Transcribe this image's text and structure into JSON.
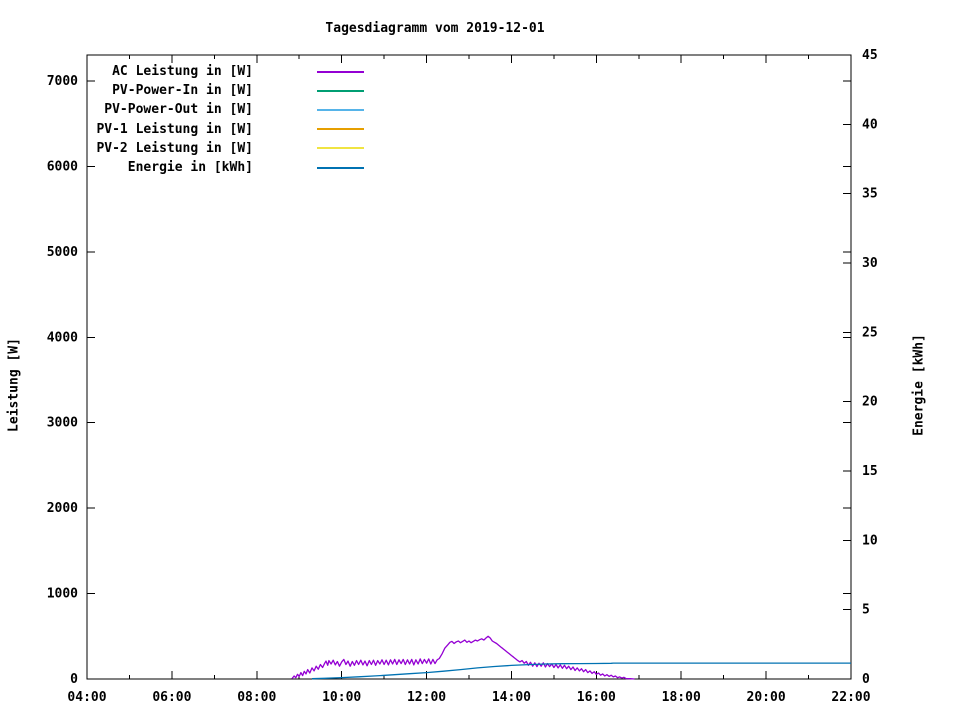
{
  "chart_data": {
    "type": "line",
    "title": "Tagesdiagramm vom 2019-12-01",
    "ylabel": "Leistung [W]",
    "y2label": "Energie [kWh]",
    "xlim": [
      4,
      22
    ],
    "ylim": [
      0,
      7304
    ],
    "y2lim": [
      0,
      45
    ],
    "grid": false,
    "legend_position": "top-left-inside",
    "x_ticks": [
      {
        "h": 4,
        "label": "04:00"
      },
      {
        "h": 6,
        "label": "06:00"
      },
      {
        "h": 8,
        "label": "08:00"
      },
      {
        "h": 10,
        "label": "10:00"
      },
      {
        "h": 12,
        "label": "12:00"
      },
      {
        "h": 14,
        "label": "14:00"
      },
      {
        "h": 16,
        "label": "16:00"
      },
      {
        "h": 18,
        "label": "18:00"
      },
      {
        "h": 20,
        "label": "20:00"
      },
      {
        "h": 22,
        "label": "22:00"
      }
    ],
    "x_minor_tick_hours": 1,
    "y_ticks": [
      0,
      1000,
      2000,
      3000,
      4000,
      5000,
      6000,
      7000
    ],
    "y2_ticks": [
      0,
      5,
      10,
      15,
      20,
      25,
      30,
      35,
      40,
      45
    ],
    "series": [
      {
        "name": "AC Leistung in [W]",
        "color": "#9400D3",
        "axis": "left",
        "points": [
          [
            8.83,
            5
          ],
          [
            8.88,
            35
          ],
          [
            8.92,
            15
          ],
          [
            8.96,
            55
          ],
          [
            9.0,
            30
          ],
          [
            9.04,
            75
          ],
          [
            9.08,
            40
          ],
          [
            9.12,
            90
          ],
          [
            9.16,
            60
          ],
          [
            9.2,
            110
          ],
          [
            9.25,
            70
          ],
          [
            9.3,
            130
          ],
          [
            9.35,
            95
          ],
          [
            9.4,
            150
          ],
          [
            9.45,
            115
          ],
          [
            9.5,
            170
          ],
          [
            9.55,
            135
          ],
          [
            9.6,
            185
          ],
          [
            9.63,
            210
          ],
          [
            9.67,
            160
          ],
          [
            9.7,
            215
          ],
          [
            9.75,
            175
          ],
          [
            9.8,
            220
          ],
          [
            9.85,
            165
          ],
          [
            9.9,
            205
          ],
          [
            9.95,
            150
          ],
          [
            10.0,
            200
          ],
          [
            10.05,
            230
          ],
          [
            10.1,
            170
          ],
          [
            10.15,
            210
          ],
          [
            10.2,
            150
          ],
          [
            10.25,
            205
          ],
          [
            10.3,
            160
          ],
          [
            10.35,
            215
          ],
          [
            10.4,
            170
          ],
          [
            10.45,
            220
          ],
          [
            10.5,
            165
          ],
          [
            10.55,
            210
          ],
          [
            10.6,
            155
          ],
          [
            10.65,
            215
          ],
          [
            10.7,
            170
          ],
          [
            10.75,
            220
          ],
          [
            10.8,
            160
          ],
          [
            10.85,
            215
          ],
          [
            10.9,
            175
          ],
          [
            10.95,
            225
          ],
          [
            11.0,
            170
          ],
          [
            11.05,
            220
          ],
          [
            11.1,
            165
          ],
          [
            11.15,
            225
          ],
          [
            11.2,
            175
          ],
          [
            11.25,
            230
          ],
          [
            11.3,
            170
          ],
          [
            11.35,
            225
          ],
          [
            11.4,
            180
          ],
          [
            11.45,
            230
          ],
          [
            11.5,
            170
          ],
          [
            11.55,
            225
          ],
          [
            11.6,
            175
          ],
          [
            11.65,
            230
          ],
          [
            11.7,
            165
          ],
          [
            11.75,
            225
          ],
          [
            11.8,
            175
          ],
          [
            11.85,
            235
          ],
          [
            11.9,
            180
          ],
          [
            11.95,
            230
          ],
          [
            12.0,
            185
          ],
          [
            12.05,
            235
          ],
          [
            12.1,
            175
          ],
          [
            12.15,
            230
          ],
          [
            12.2,
            180
          ],
          [
            12.25,
            225
          ],
          [
            12.3,
            240
          ],
          [
            12.37,
            300
          ],
          [
            12.43,
            360
          ],
          [
            12.5,
            400
          ],
          [
            12.55,
            430
          ],
          [
            12.6,
            440
          ],
          [
            12.65,
            415
          ],
          [
            12.7,
            435
          ],
          [
            12.75,
            445
          ],
          [
            12.8,
            425
          ],
          [
            12.85,
            440
          ],
          [
            12.9,
            455
          ],
          [
            12.95,
            430
          ],
          [
            13.0,
            445
          ],
          [
            13.05,
            425
          ],
          [
            13.1,
            440
          ],
          [
            13.15,
            455
          ],
          [
            13.2,
            445
          ],
          [
            13.25,
            460
          ],
          [
            13.3,
            470
          ],
          [
            13.35,
            455
          ],
          [
            13.4,
            480
          ],
          [
            13.45,
            500
          ],
          [
            13.5,
            480
          ],
          [
            13.55,
            445
          ],
          [
            13.6,
            430
          ],
          [
            13.65,
            415
          ],
          [
            13.7,
            395
          ],
          [
            13.75,
            375
          ],
          [
            13.8,
            355
          ],
          [
            13.85,
            335
          ],
          [
            13.9,
            315
          ],
          [
            13.95,
            295
          ],
          [
            14.0,
            275
          ],
          [
            14.05,
            255
          ],
          [
            14.1,
            235
          ],
          [
            14.15,
            215
          ],
          [
            14.2,
            200
          ],
          [
            14.25,
            215
          ],
          [
            14.3,
            185
          ],
          [
            14.35,
            205
          ],
          [
            14.4,
            160
          ],
          [
            14.45,
            195
          ],
          [
            14.5,
            150
          ],
          [
            14.55,
            190
          ],
          [
            14.6,
            145
          ],
          [
            14.65,
            185
          ],
          [
            14.7,
            150
          ],
          [
            14.75,
            190
          ],
          [
            14.8,
            140
          ],
          [
            14.85,
            180
          ],
          [
            14.9,
            145
          ],
          [
            14.95,
            175
          ],
          [
            15.0,
            135
          ],
          [
            15.05,
            170
          ],
          [
            15.1,
            130
          ],
          [
            15.15,
            165
          ],
          [
            15.2,
            125
          ],
          [
            15.25,
            160
          ],
          [
            15.3,
            120
          ],
          [
            15.35,
            150
          ],
          [
            15.4,
            110
          ],
          [
            15.45,
            140
          ],
          [
            15.5,
            100
          ],
          [
            15.55,
            130
          ],
          [
            15.6,
            95
          ],
          [
            15.65,
            120
          ],
          [
            15.7,
            85
          ],
          [
            15.75,
            110
          ],
          [
            15.8,
            75
          ],
          [
            15.85,
            95
          ],
          [
            15.9,
            65
          ],
          [
            15.95,
            85
          ],
          [
            16.0,
            55
          ],
          [
            16.05,
            70
          ],
          [
            16.1,
            45
          ],
          [
            16.15,
            60
          ],
          [
            16.2,
            35
          ],
          [
            16.25,
            50
          ],
          [
            16.3,
            30
          ],
          [
            16.35,
            45
          ],
          [
            16.4,
            25
          ],
          [
            16.45,
            35
          ],
          [
            16.5,
            15
          ],
          [
            16.55,
            25
          ],
          [
            16.6,
            10
          ],
          [
            16.65,
            20
          ],
          [
            16.7,
            5
          ],
          [
            16.8,
            3
          ],
          [
            16.9,
            0
          ]
        ]
      },
      {
        "name": "PV-Power-In in [W]",
        "color": "#009E73",
        "axis": "left",
        "points": []
      },
      {
        "name": "PV-Power-Out in [W]",
        "color": "#56B4E9",
        "axis": "left",
        "points": []
      },
      {
        "name": "PV-1 Leistung in [W]",
        "color": "#E69F00",
        "axis": "left",
        "points": []
      },
      {
        "name": "PV-2 Leistung in [W]",
        "color": "#F0E442",
        "axis": "left",
        "points": []
      },
      {
        "name": "Energie in [kWh]",
        "color": "#0072B2",
        "axis": "right",
        "points": [
          [
            9.3,
            0.02
          ],
          [
            9.6,
            0.05
          ],
          [
            10.0,
            0.1
          ],
          [
            10.4,
            0.16
          ],
          [
            10.8,
            0.22
          ],
          [
            11.2,
            0.3
          ],
          [
            11.6,
            0.38
          ],
          [
            12.0,
            0.46
          ],
          [
            12.4,
            0.56
          ],
          [
            12.8,
            0.68
          ],
          [
            13.2,
            0.8
          ],
          [
            13.6,
            0.9
          ],
          [
            14.0,
            0.98
          ],
          [
            14.4,
            1.04
          ],
          [
            14.8,
            1.08
          ],
          [
            15.2,
            1.1
          ],
          [
            15.6,
            1.11
          ],
          [
            16.0,
            1.12
          ],
          [
            16.35,
            1.13
          ],
          [
            16.4,
            1.15
          ],
          [
            22.0,
            1.15
          ]
        ]
      }
    ]
  }
}
